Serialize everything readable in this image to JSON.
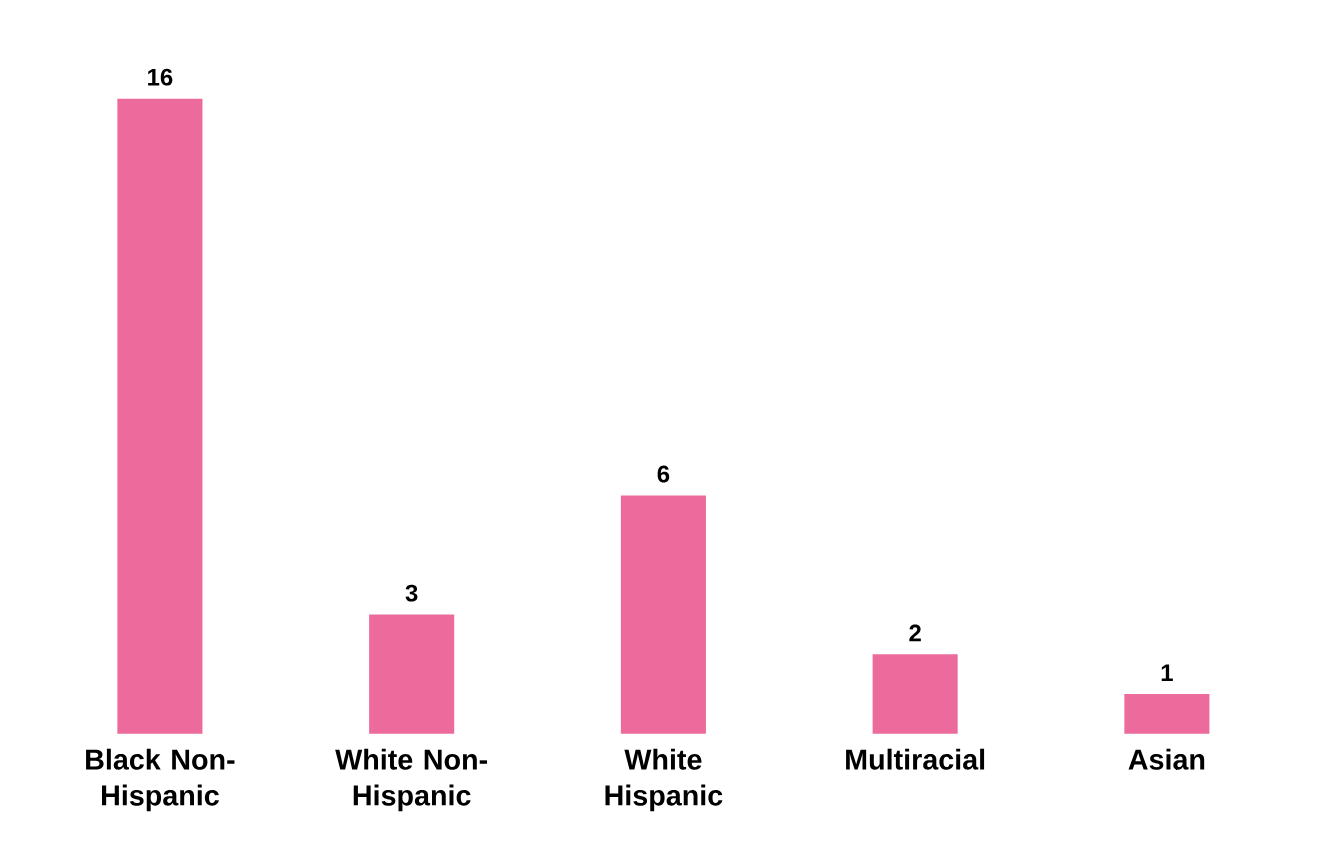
{
  "chart_data": {
    "type": "bar",
    "categories": [
      "Black Non-Hispanic",
      "White Non-Hispanic",
      "White Hispanic",
      "Multiracial",
      "Asian"
    ],
    "values": [
      16,
      3,
      6,
      2,
      1
    ],
    "color": "#ec6a9c",
    "data_labels": true
  }
}
